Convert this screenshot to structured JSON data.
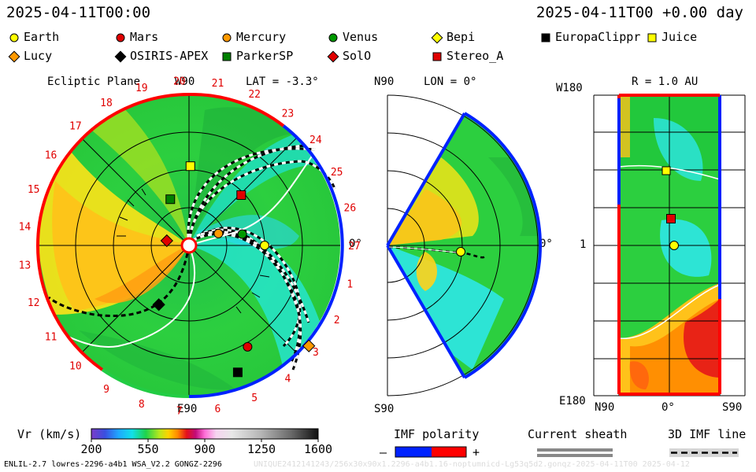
{
  "header": {
    "date_left": "2025-04-11T00:00",
    "date_right": "2025-04-11T00 +0.00 day"
  },
  "legend": [
    {
      "name": "Earth",
      "shape": "circle",
      "color": "#ffff00"
    },
    {
      "name": "Mars",
      "shape": "circle",
      "color": "#e00000"
    },
    {
      "name": "Mercury",
      "shape": "circle",
      "color": "#ff9900"
    },
    {
      "name": "Venus",
      "shape": "circle",
      "color": "#009900"
    },
    {
      "name": "Bepi",
      "shape": "diamond",
      "color": "#ffff00"
    },
    {
      "name": "EuropaClippr",
      "shape": "square",
      "color": "#000000"
    },
    {
      "name": "Juice",
      "shape": "square",
      "color": "#ffff00"
    },
    {
      "name": "Lucy",
      "shape": "diamond",
      "color": "#ff9900"
    },
    {
      "name": "OSIRIS-APEX",
      "shape": "diamond",
      "color": "#000000"
    },
    {
      "name": "ParkerSP",
      "shape": "square",
      "color": "#008000"
    },
    {
      "name": "SolO",
      "shape": "diamond",
      "color": "#e00000"
    },
    {
      "name": "Stereo_A",
      "shape": "square",
      "color": "#e00000"
    }
  ],
  "panels": {
    "ecliptic": {
      "title": "Ecliptic Plane",
      "top_label": "W90",
      "bottom_label": "E90",
      "right_label": "0°",
      "lat_label": "LAT = -3.3°",
      "carrington_ticks": [
        "1",
        "2",
        "3",
        "4",
        "5",
        "6",
        "7",
        "8",
        "9",
        "10",
        "11",
        "12",
        "13",
        "14",
        "15",
        "16",
        "17",
        "18",
        "19",
        "20",
        "21",
        "22",
        "23",
        "24",
        "25",
        "26",
        "27"
      ]
    },
    "meridional": {
      "top_label": "N90",
      "bottom_label": "S90",
      "lon_label": "LON = 0°",
      "right_label": "0°"
    },
    "map": {
      "title": "R = 1.0 AU",
      "left_top": "W180",
      "left_mid": "1",
      "left_bottom": "E180",
      "bottom_left": "N90",
      "bottom_mid": "0°",
      "bottom_right": "S90"
    }
  },
  "chart_data": {
    "type": "heatmap",
    "title": "",
    "quantity": "Vr (km/s)",
    "colorbar": {
      "label": "Vr (km/s)",
      "ticks": [
        200,
        550,
        900,
        1250,
        1600
      ],
      "range": [
        200,
        1600
      ]
    },
    "bodies_ecliptic": [
      {
        "name": "Earth",
        "r_au": 1.0,
        "lon_deg": 0
      },
      {
        "name": "Venus",
        "r_au": 0.72,
        "lon_deg": 12
      },
      {
        "name": "Mercury",
        "r_au": 0.42,
        "lon_deg": 22
      },
      {
        "name": "Mars",
        "r_au": 1.55,
        "lon_deg": -60
      },
      {
        "name": "SolO",
        "r_au": 0.3,
        "lon_deg": 168
      },
      {
        "name": "ParkerSP",
        "r_au": 0.66,
        "lon_deg": 112
      },
      {
        "name": "Stereo_A",
        "r_au": 0.96,
        "lon_deg": 44
      },
      {
        "name": "Juice",
        "r_au": 1.05,
        "lon_deg": 89
      },
      {
        "name": "Lucy",
        "r_au": 2.07,
        "lon_deg": -40
      },
      {
        "name": "OSIRIS-APEX",
        "r_au": 0.88,
        "lon_deg": -117
      },
      {
        "name": "EuropaClippr",
        "r_au": 1.8,
        "lon_deg": -69
      }
    ]
  },
  "bottom": {
    "imf_title": "IMF polarity",
    "imf_minus": "–",
    "imf_plus": "+",
    "sheath_title": "Current sheath",
    "imf3d_title": "3D IMF line",
    "footer": "ENLIL-2.7 lowres-2296-a4b1 WSA_V2.2 GONGZ-2296",
    "footer_faint": "UNIQUE2412141243/256x30x90x1.2296-a4b1.16-noptumnicd-Lg53q5d2.gonqz-2025-04-11T00  2025-04-12"
  }
}
